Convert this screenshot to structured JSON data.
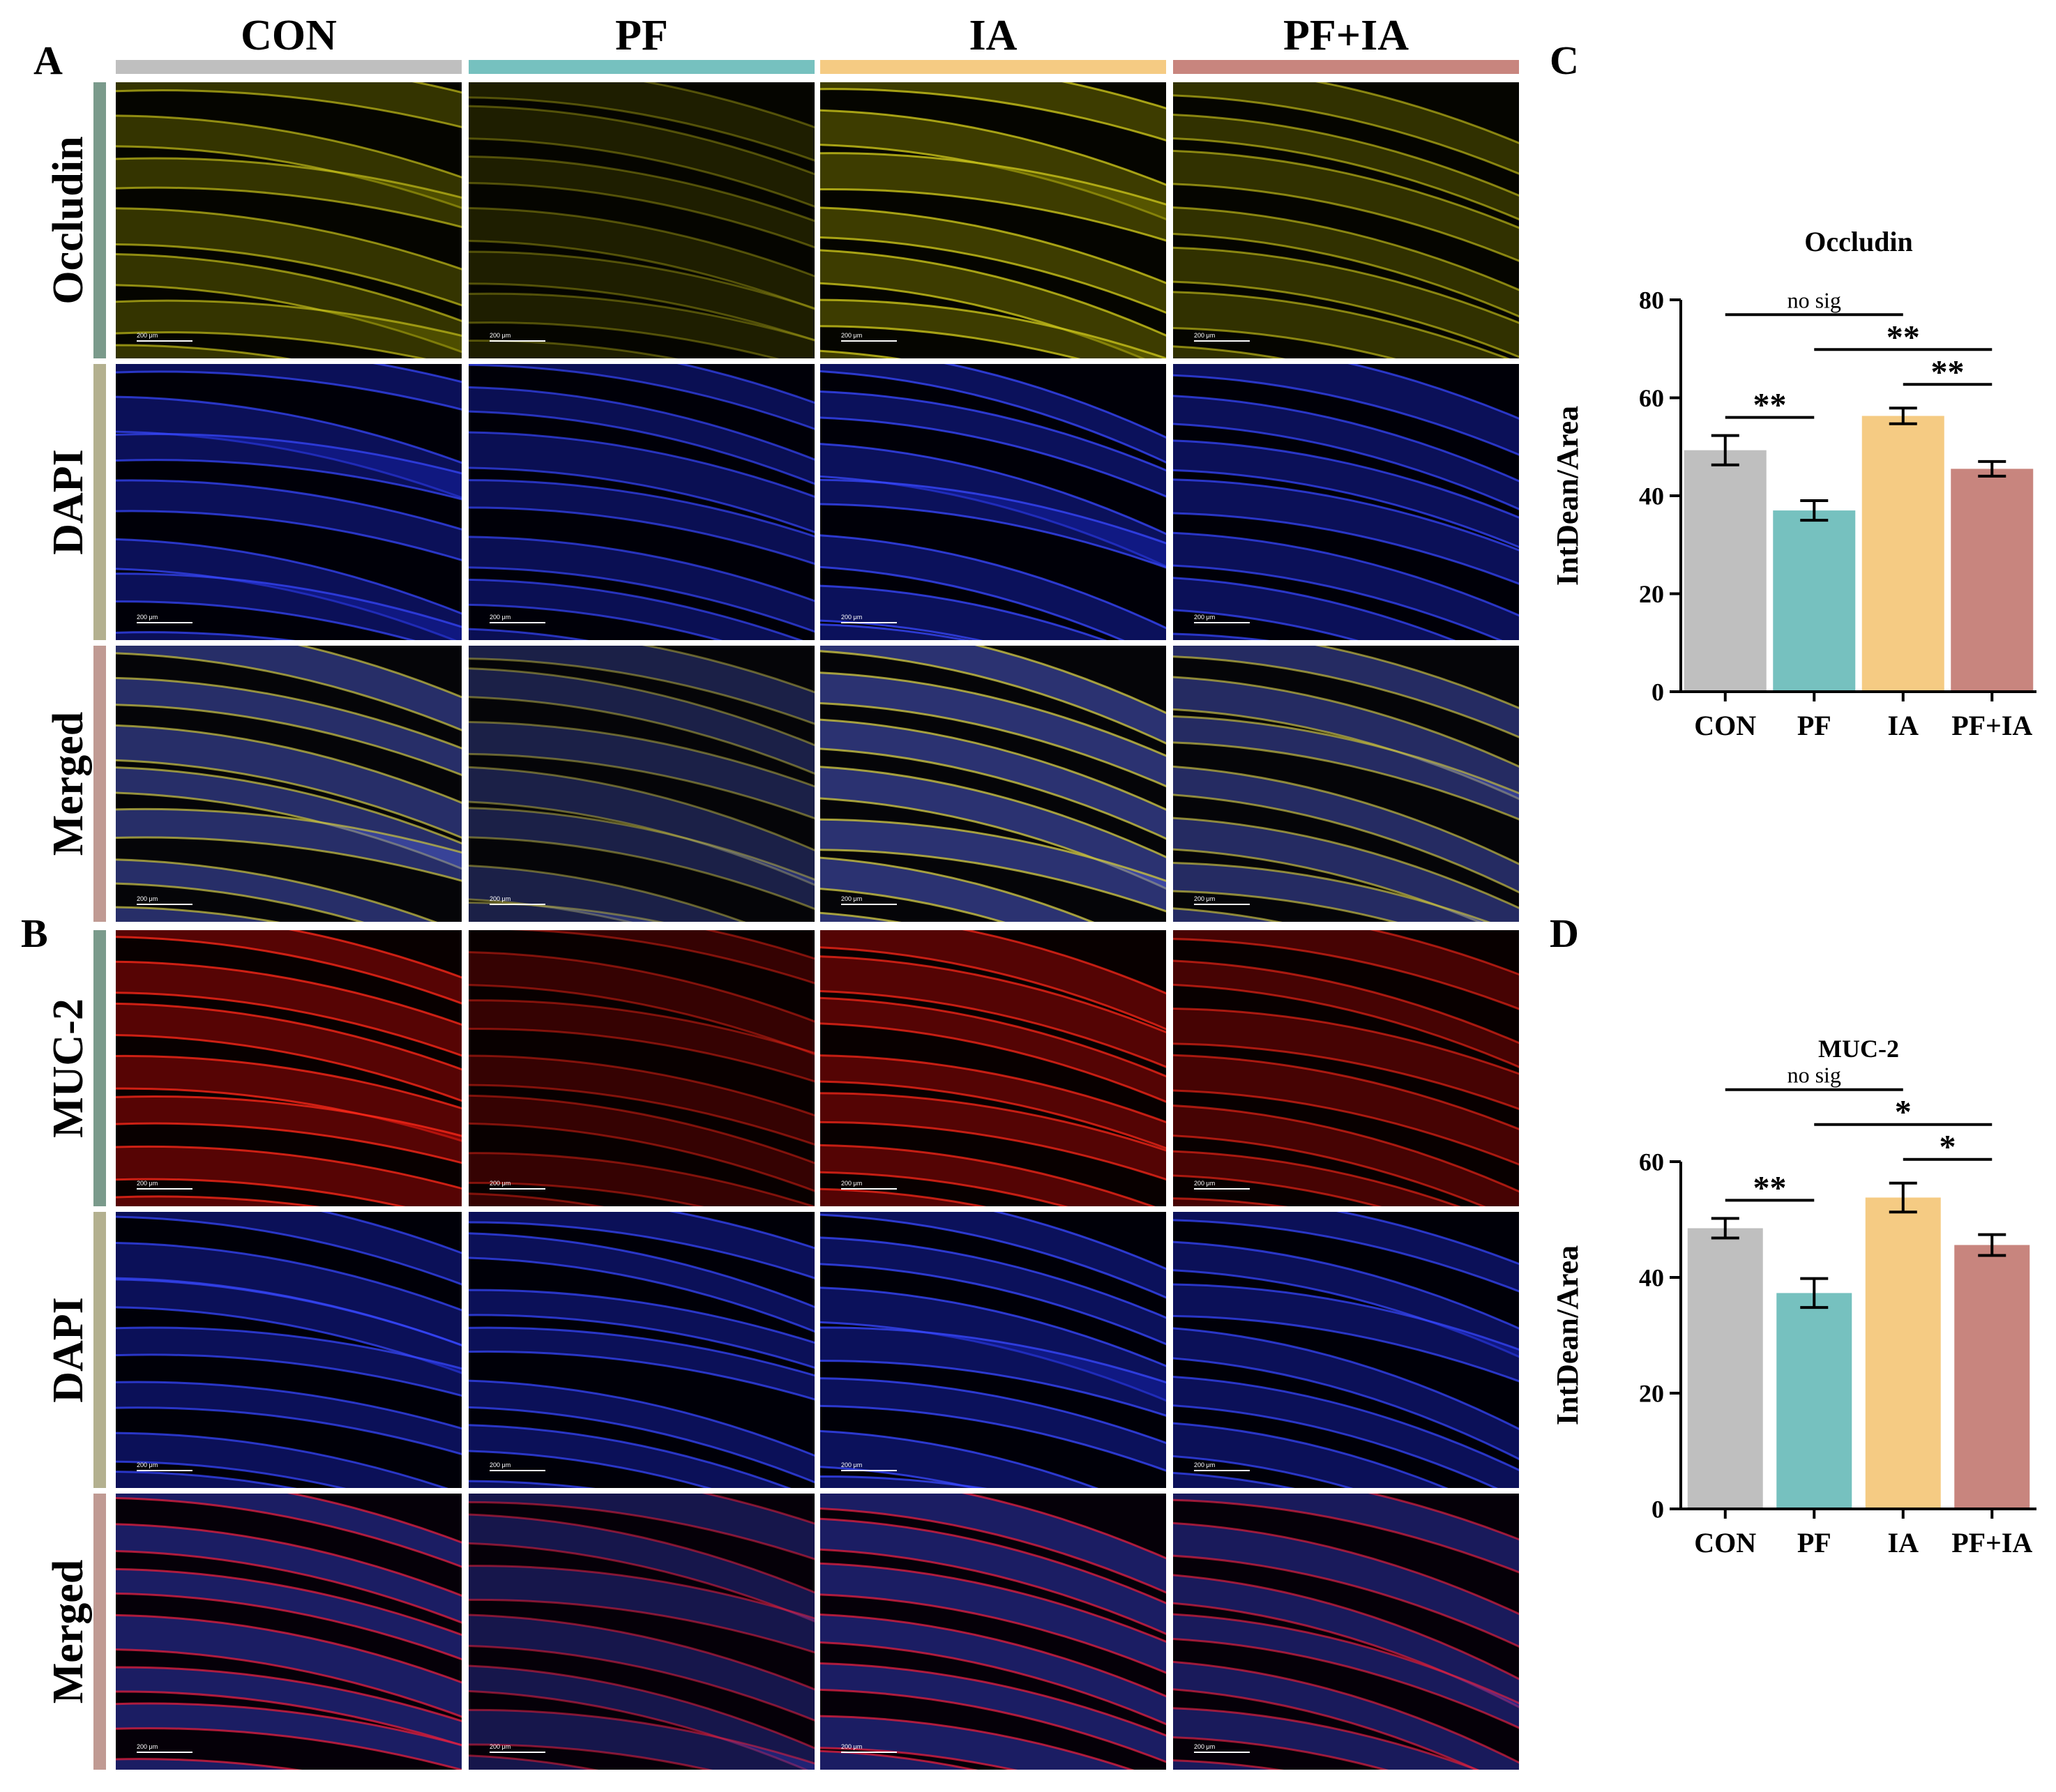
{
  "panels": {
    "A": "A",
    "B": "B",
    "C": "C",
    "D": "D"
  },
  "columns": [
    {
      "label": "CON",
      "color": "#bfbfbf"
    },
    {
      "label": "PF",
      "color": "#76c1bf"
    },
    {
      "label": "IA",
      "color": "#f5cb83"
    },
    {
      "label": "PF+IA",
      "color": "#c8857e"
    }
  ],
  "rows_A": [
    {
      "label": "Occludin",
      "tab_color": "#7a9a8b"
    },
    {
      "label": "DAPI",
      "tab_color": "#b3b08f"
    },
    {
      "label": "Merged",
      "tab_color": "#c09a93"
    }
  ],
  "rows_B": [
    {
      "label": "MUC-2",
      "tab_color": "#7a9a8b"
    },
    {
      "label": "DAPI",
      "tab_color": "#b3b08f"
    },
    {
      "label": "Merged",
      "tab_color": "#c09a93"
    }
  ],
  "scale_bar": "200 μm",
  "chart_data": [
    {
      "type": "bar",
      "title": "Occludin",
      "categories": [
        "CON",
        "PF",
        "IA",
        "PF+IA"
      ],
      "values": [
        49.3,
        37.0,
        56.3,
        45.5
      ],
      "errors": [
        3.0,
        2.0,
        1.6,
        1.5
      ],
      "colors": [
        "#bfbfbf",
        "#76c1bf",
        "#f5cb83",
        "#c8857e"
      ],
      "ylabel": "IntDean/Area",
      "xlabel": "",
      "ylim": [
        0,
        80
      ],
      "yticks": [
        0,
        20,
        40,
        60,
        80
      ],
      "significance": [
        {
          "from": 0,
          "to": 2,
          "label": "no sig",
          "level": 2
        },
        {
          "from": 1,
          "to": 3,
          "label": "**",
          "level": 1
        },
        {
          "from": 2,
          "to": 3,
          "label": "**",
          "level": 0
        },
        {
          "from": 0,
          "to": 1,
          "label": "**",
          "level": 0
        }
      ]
    },
    {
      "type": "bar",
      "title": "MUC-2",
      "categories": [
        "CON",
        "PF",
        "IA",
        "PF+IA"
      ],
      "values": [
        48.5,
        37.3,
        53.8,
        45.6
      ],
      "errors": [
        1.7,
        2.5,
        2.5,
        1.8
      ],
      "colors": [
        "#bfbfbf",
        "#76c1bf",
        "#f5cb83",
        "#c8857e"
      ],
      "ylabel": "IntDean/Area",
      "xlabel": "",
      "ylim": [
        0,
        60
      ],
      "yticks": [
        0,
        20,
        40,
        60
      ],
      "significance": [
        {
          "from": 0,
          "to": 2,
          "label": "no sig",
          "level": 2
        },
        {
          "from": 1,
          "to": 3,
          "label": "*",
          "level": 1
        },
        {
          "from": 2,
          "to": 3,
          "label": "*",
          "level": 0
        },
        {
          "from": 0,
          "to": 1,
          "label": "**",
          "level": 0
        }
      ]
    }
  ]
}
